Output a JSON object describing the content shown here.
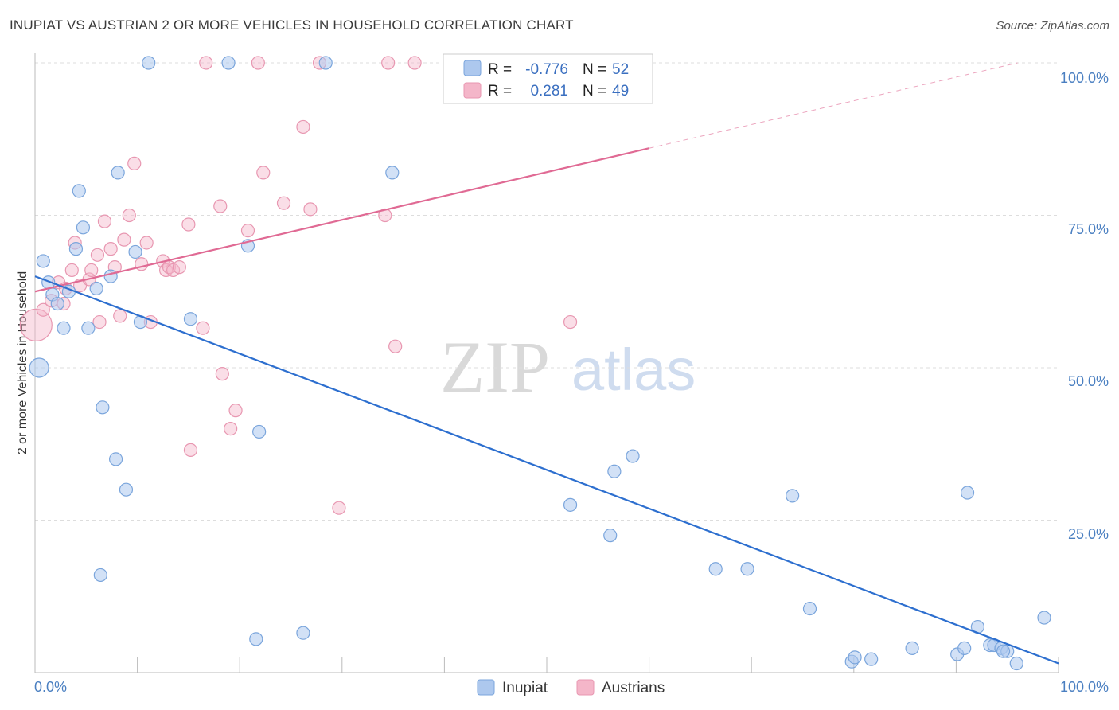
{
  "header": {
    "title": "INUPIAT VS AUSTRIAN 2 OR MORE VEHICLES IN HOUSEHOLD CORRELATION CHART",
    "source": "Source: ZipAtlas.com"
  },
  "watermark": {
    "zip": "ZIP",
    "atlas": "atlas"
  },
  "legend": {
    "rows": [
      {
        "r_label": "R =",
        "r_value": "-0.776",
        "n_label": "N =",
        "n_value": "52"
      },
      {
        "r_label": "R =",
        "r_value": "0.281",
        "n_label": "N =",
        "n_value": "49"
      }
    ]
  },
  "bottom_legend": {
    "items": [
      {
        "label": "Inupiat"
      },
      {
        "label": "Austrians"
      }
    ]
  },
  "colors": {
    "inupiat_fill": "#adc8ee",
    "inupiat_stroke": "#7aa5dc",
    "inupiat_line": "#2d6fcf",
    "austrian_fill": "#f4b6c9",
    "austrian_stroke": "#e897b1",
    "austrian_line": "#e06a94",
    "tick_text": "#4a7fc1",
    "grid": "#dddddd"
  },
  "chart_data": {
    "type": "scatter",
    "title": "INUPIAT VS AUSTRIAN 2 OR MORE VEHICLES IN HOUSEHOLD CORRELATION CHART",
    "xlabel": "",
    "ylabel": "2 or more Vehicles in Household",
    "xlim": [
      0,
      100
    ],
    "ylim": [
      0,
      100
    ],
    "x_ticks": [
      "0.0%",
      "100.0%"
    ],
    "y_ticks": [
      "25.0%",
      "50.0%",
      "75.0%",
      "100.0%"
    ],
    "grid": "horizontal dashed",
    "legend_position": "top-center",
    "series": [
      {
        "name": "Inupiat",
        "R": -0.776,
        "N": 52,
        "trend": {
          "x": [
            0,
            100
          ],
          "y": [
            65.0,
            1.5
          ]
        },
        "points": [
          [
            0.4,
            50.0
          ],
          [
            0.8,
            67.5
          ],
          [
            1.3,
            64.0
          ],
          [
            1.7,
            62.0
          ],
          [
            2.2,
            60.5
          ],
          [
            2.8,
            56.5
          ],
          [
            3.3,
            62.5
          ],
          [
            4.0,
            69.5
          ],
          [
            4.3,
            79.0
          ],
          [
            4.7,
            73.0
          ],
          [
            5.2,
            56.5
          ],
          [
            6.0,
            63.0
          ],
          [
            6.4,
            16.0
          ],
          [
            6.6,
            43.5
          ],
          [
            7.4,
            65.0
          ],
          [
            7.9,
            35.0
          ],
          [
            8.1,
            82.0
          ],
          [
            8.9,
            30.0
          ],
          [
            9.8,
            69.0
          ],
          [
            10.3,
            57.5
          ],
          [
            11.1,
            100
          ],
          [
            15.2,
            58.0
          ],
          [
            18.9,
            100
          ],
          [
            20.8,
            70.0
          ],
          [
            21.6,
            5.5
          ],
          [
            21.9,
            39.5
          ],
          [
            26.2,
            6.5
          ],
          [
            28.4,
            100
          ],
          [
            34.9,
            82.0
          ],
          [
            52.3,
            27.5
          ],
          [
            56.2,
            22.5
          ],
          [
            56.6,
            33.0
          ],
          [
            58.4,
            35.5
          ],
          [
            66.5,
            17.0
          ],
          [
            69.6,
            17.0
          ],
          [
            74.0,
            29.0
          ],
          [
            75.7,
            10.5
          ],
          [
            79.8,
            1.8
          ],
          [
            80.1,
            2.5
          ],
          [
            81.7,
            2.2
          ],
          [
            85.7,
            4.0
          ],
          [
            90.1,
            3.0
          ],
          [
            90.8,
            4.0
          ],
          [
            91.1,
            29.5
          ],
          [
            92.1,
            7.5
          ],
          [
            93.3,
            4.5
          ],
          [
            93.7,
            4.5
          ],
          [
            94.4,
            4.0
          ],
          [
            95.0,
            3.5
          ],
          [
            95.9,
            1.5
          ],
          [
            98.6,
            9.0
          ],
          [
            94.6,
            3.5
          ]
        ]
      },
      {
        "name": "Austrians",
        "R": 0.281,
        "N": 49,
        "trend": {
          "x": [
            0,
            60
          ],
          "y": [
            62.5,
            86.0
          ]
        },
        "trend_extension": {
          "x": [
            60,
            96
          ],
          "y": [
            86.0,
            100.0
          ]
        },
        "points": [
          [
            0.1,
            57.0
          ],
          [
            0.8,
            59.5
          ],
          [
            1.6,
            61.0
          ],
          [
            2.3,
            64.0
          ],
          [
            2.8,
            60.5
          ],
          [
            3.0,
            63.0
          ],
          [
            3.6,
            66.0
          ],
          [
            3.9,
            70.5
          ],
          [
            4.4,
            63.5
          ],
          [
            5.3,
            64.5
          ],
          [
            5.5,
            66.0
          ],
          [
            6.1,
            68.5
          ],
          [
            6.3,
            57.5
          ],
          [
            6.8,
            74.0
          ],
          [
            7.4,
            69.5
          ],
          [
            7.8,
            66.5
          ],
          [
            8.3,
            58.5
          ],
          [
            8.7,
            71.0
          ],
          [
            9.2,
            75.0
          ],
          [
            9.7,
            83.5
          ],
          [
            10.4,
            67.0
          ],
          [
            10.9,
            70.5
          ],
          [
            11.3,
            57.5
          ],
          [
            12.5,
            67.5
          ],
          [
            12.8,
            66.0
          ],
          [
            13.1,
            66.5
          ],
          [
            13.5,
            66.0
          ],
          [
            14.1,
            66.5
          ],
          [
            15.0,
            73.5
          ],
          [
            15.2,
            36.5
          ],
          [
            16.4,
            56.5
          ],
          [
            16.7,
            100
          ],
          [
            18.1,
            76.5
          ],
          [
            18.3,
            49.0
          ],
          [
            19.1,
            40.0
          ],
          [
            19.6,
            43.0
          ],
          [
            20.8,
            72.5
          ],
          [
            21.8,
            100
          ],
          [
            22.3,
            82.0
          ],
          [
            24.3,
            77.0
          ],
          [
            26.2,
            89.5
          ],
          [
            26.9,
            76.0
          ],
          [
            27.8,
            100
          ],
          [
            29.7,
            27.0
          ],
          [
            34.2,
            75.0
          ],
          [
            34.5,
            100
          ],
          [
            35.2,
            53.5
          ],
          [
            37.1,
            100
          ],
          [
            52.3,
            57.5
          ]
        ]
      }
    ]
  }
}
